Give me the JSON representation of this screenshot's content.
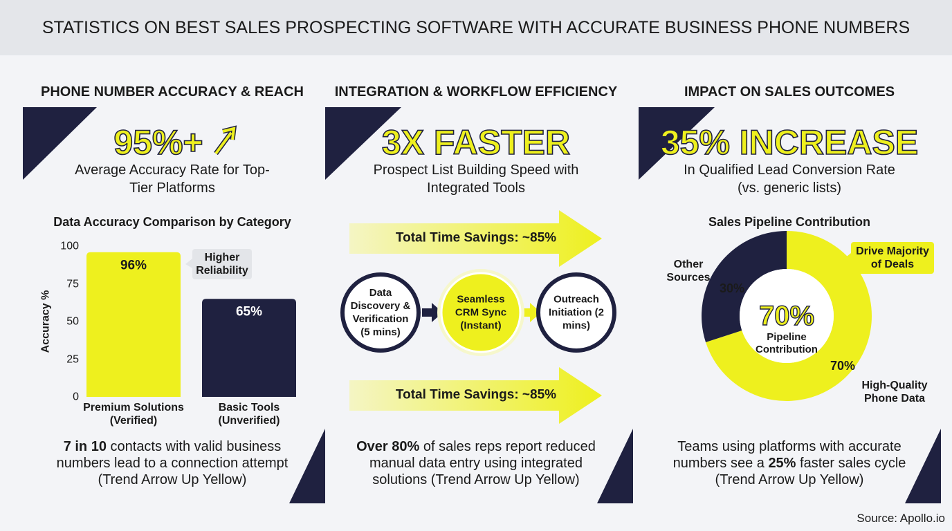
{
  "title": "STATISTICS ON BEST SALES PROSPECTING SOFTWARE WITH ACCURATE BUSINESS PHONE NUMBERS",
  "source": "Source: Apollo.io",
  "panels": [
    {
      "heading": "PHONE NUMBER ACCURACY & REACH",
      "stat": "95%+",
      "stat_caption": "Average Accuracy Rate for Top-Tier Platforms",
      "footer": [
        {
          "text": "7 in 10",
          "bold": true
        },
        {
          "text": " contacts with valid business numbers lead to a connection attempt (Trend Arrow Up Yellow)",
          "bold": false
        }
      ]
    },
    {
      "heading": "INTEGRATION & WORKFLOW EFFICIENCY",
      "stat": "3X FASTER",
      "stat_caption": "Prospect List Building Speed with Integrated Tools",
      "footer": [
        {
          "text": "Over 80%",
          "bold": true
        },
        {
          "text": " of sales reps report reduced manual data entry using integrated solutions (Trend Arrow Up Yellow)",
          "bold": false
        }
      ]
    },
    {
      "heading": "IMPACT ON SALES OUTCOMES",
      "stat": "35% INCREASE",
      "stat_caption": "In Qualified Lead Conversion Rate (vs. generic lists)",
      "footer": [
        {
          "text": "Teams using platforms with accurate numbers see a ",
          "bold": false
        },
        {
          "text": "25%",
          "bold": true
        },
        {
          "text": " faster sales cycle (Trend Arrow Up Yellow)",
          "bold": false
        }
      ]
    }
  ],
  "workflow": {
    "banners": [
      "Total Time Savings: ~85%",
      "Total Time Savings: ~85%"
    ],
    "steps": [
      "Data Discovery & Verification (5 mins)",
      "Seamless CRM Sync (Instant)",
      "Outreach Initiation (2 mins)"
    ]
  },
  "chart_data": [
    {
      "type": "bar",
      "title": "Data Accuracy Comparison by Category",
      "y_label": "Accuracy %",
      "categories": [
        "Premium Solutions (Verified)",
        "Basic Tools (Unverified)"
      ],
      "values": [
        96,
        65
      ],
      "value_labels": [
        "96%",
        "65%"
      ],
      "colors": [
        "#eef01e",
        "#1f2140"
      ],
      "ylim": [
        0,
        100
      ],
      "yticks": [
        0,
        25,
        50,
        75,
        100
      ],
      "grid": false,
      "annotation": "Higher Reliability"
    },
    {
      "type": "pie",
      "title": "Sales Pipeline Contribution",
      "categories": [
        "High-Quality Phone Data",
        "Other Sources"
      ],
      "values": [
        70,
        30
      ],
      "value_labels": [
        "70%",
        "30%"
      ],
      "colors": [
        "#eef01e",
        "#1f2140"
      ],
      "center_label": "Pipeline Contribution",
      "annotation": "Drive Majority of Deals"
    }
  ]
}
